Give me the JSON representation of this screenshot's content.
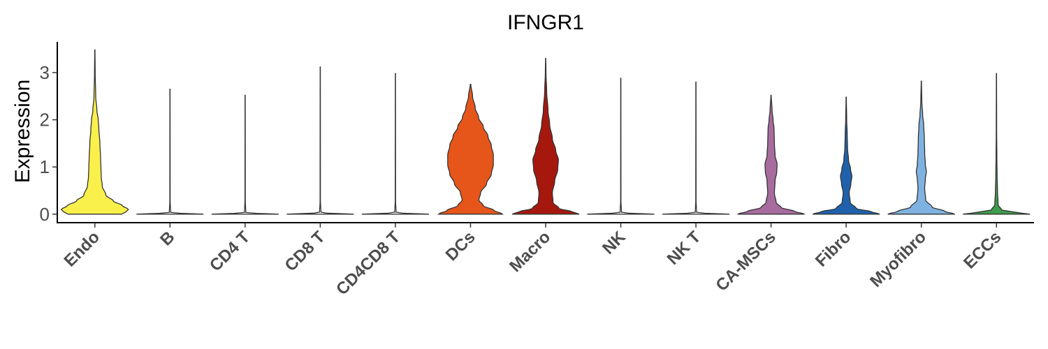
{
  "chart_data": {
    "type": "violin",
    "title": "IFNGR1",
    "xlabel": "",
    "ylabel": "Expression",
    "ylim": [
      -0.18,
      3.65
    ],
    "yticks": [
      0,
      1,
      2,
      3
    ],
    "grid": false,
    "legend": "none",
    "categories": [
      "Endo",
      "B",
      "CD4 T",
      "CD8 T",
      "CD4CD8 T",
      "DCs",
      "Macro",
      "NK",
      "NK T",
      "CA-MSCs",
      "Fibro",
      "Myofibro",
      "ECCs"
    ],
    "series": [
      {
        "category": "Endo",
        "color": "#FAF04B",
        "max": 3.48,
        "profile": [
          [
            0,
            0.8
          ],
          [
            0.05,
            0.93
          ],
          [
            0.1,
            1.0
          ],
          [
            0.18,
            0.82
          ],
          [
            0.28,
            0.55
          ],
          [
            0.4,
            0.33
          ],
          [
            0.6,
            0.22
          ],
          [
            0.8,
            0.19
          ],
          [
            1.0,
            0.18
          ],
          [
            1.2,
            0.17
          ],
          [
            1.5,
            0.15
          ],
          [
            1.8,
            0.12
          ],
          [
            2.0,
            0.1
          ],
          [
            2.2,
            0.06
          ],
          [
            2.5,
            0.025
          ],
          [
            3.0,
            0.01
          ],
          [
            3.48,
            0.004
          ]
        ]
      },
      {
        "category": "B",
        "color": "#FFFFFF",
        "max": 2.65,
        "profile": [
          [
            0,
            1.0
          ],
          [
            0.01,
            0.5
          ],
          [
            0.03,
            0.02
          ],
          [
            0.3,
            0.005
          ],
          [
            2.65,
            0.003
          ]
        ]
      },
      {
        "category": "CD4 T",
        "color": "#FFFFFF",
        "max": 2.52,
        "profile": [
          [
            0,
            1.0
          ],
          [
            0.01,
            0.5
          ],
          [
            0.03,
            0.02
          ],
          [
            0.3,
            0.005
          ],
          [
            2.52,
            0.003
          ]
        ]
      },
      {
        "category": "CD8 T",
        "color": "#FFFFFF",
        "max": 3.12,
        "profile": [
          [
            0,
            1.0
          ],
          [
            0.01,
            0.5
          ],
          [
            0.03,
            0.02
          ],
          [
            0.3,
            0.005
          ],
          [
            3.12,
            0.003
          ]
        ]
      },
      {
        "category": "CD4CD8 T",
        "color": "#FFFFFF",
        "max": 2.98,
        "profile": [
          [
            0,
            1.0
          ],
          [
            0.01,
            0.5
          ],
          [
            0.03,
            0.02
          ],
          [
            0.3,
            0.005
          ],
          [
            2.98,
            0.003
          ]
        ]
      },
      {
        "category": "DCs",
        "color": "#E6561B",
        "max": 2.75,
        "profile": [
          [
            0,
            0.95
          ],
          [
            0.08,
            0.7
          ],
          [
            0.18,
            0.38
          ],
          [
            0.3,
            0.25
          ],
          [
            0.45,
            0.3
          ],
          [
            0.65,
            0.48
          ],
          [
            0.85,
            0.62
          ],
          [
            1.05,
            0.68
          ],
          [
            1.25,
            0.68
          ],
          [
            1.45,
            0.62
          ],
          [
            1.65,
            0.52
          ],
          [
            1.85,
            0.38
          ],
          [
            2.05,
            0.24
          ],
          [
            2.25,
            0.14
          ],
          [
            2.5,
            0.06
          ],
          [
            2.75,
            0.01
          ]
        ]
      },
      {
        "category": "Macro",
        "color": "#A6180E",
        "max": 3.3,
        "profile": [
          [
            0,
            1.0
          ],
          [
            0.05,
            0.8
          ],
          [
            0.12,
            0.4
          ],
          [
            0.25,
            0.22
          ],
          [
            0.45,
            0.2
          ],
          [
            0.7,
            0.27
          ],
          [
            0.95,
            0.36
          ],
          [
            1.15,
            0.38
          ],
          [
            1.35,
            0.3
          ],
          [
            1.6,
            0.2
          ],
          [
            1.9,
            0.12
          ],
          [
            2.2,
            0.07
          ],
          [
            2.6,
            0.03
          ],
          [
            3.0,
            0.01
          ],
          [
            3.3,
            0.004
          ]
        ]
      },
      {
        "category": "NK",
        "color": "#FFFFFF",
        "max": 2.88,
        "profile": [
          [
            0,
            1.0
          ],
          [
            0.01,
            0.5
          ],
          [
            0.03,
            0.02
          ],
          [
            0.3,
            0.005
          ],
          [
            2.88,
            0.003
          ]
        ]
      },
      {
        "category": "NK T",
        "color": "#FFFFFF",
        "max": 2.8,
        "profile": [
          [
            0,
            1.0
          ],
          [
            0.01,
            0.5
          ],
          [
            0.03,
            0.02
          ],
          [
            0.3,
            0.005
          ],
          [
            2.8,
            0.003
          ]
        ]
      },
      {
        "category": "CA-MSCs",
        "color": "#A76B9E",
        "max": 2.52,
        "profile": [
          [
            0,
            1.0
          ],
          [
            0.06,
            0.7
          ],
          [
            0.14,
            0.3
          ],
          [
            0.25,
            0.15
          ],
          [
            0.45,
            0.1
          ],
          [
            0.7,
            0.12
          ],
          [
            0.9,
            0.17
          ],
          [
            1.05,
            0.18
          ],
          [
            1.25,
            0.12
          ],
          [
            1.5,
            0.1
          ],
          [
            1.8,
            0.09
          ],
          [
            2.0,
            0.06
          ],
          [
            2.2,
            0.03
          ],
          [
            2.52,
            0.005
          ]
        ]
      },
      {
        "category": "Fibro",
        "color": "#1F61AC",
        "max": 2.48,
        "profile": [
          [
            0,
            1.0
          ],
          [
            0.05,
            0.75
          ],
          [
            0.12,
            0.3
          ],
          [
            0.25,
            0.12
          ],
          [
            0.45,
            0.09
          ],
          [
            0.65,
            0.14
          ],
          [
            0.8,
            0.17
          ],
          [
            0.95,
            0.13
          ],
          [
            1.15,
            0.07
          ],
          [
            1.4,
            0.04
          ],
          [
            1.7,
            0.03
          ],
          [
            2.0,
            0.015
          ],
          [
            2.48,
            0.004
          ]
        ]
      },
      {
        "category": "Myofibro",
        "color": "#7FB2E0",
        "max": 2.82,
        "profile": [
          [
            0,
            1.0
          ],
          [
            0.06,
            0.7
          ],
          [
            0.15,
            0.32
          ],
          [
            0.3,
            0.13
          ],
          [
            0.55,
            0.1
          ],
          [
            0.75,
            0.12
          ],
          [
            0.9,
            0.15
          ],
          [
            1.05,
            0.12
          ],
          [
            1.3,
            0.1
          ],
          [
            1.6,
            0.09
          ],
          [
            1.9,
            0.07
          ],
          [
            2.1,
            0.04
          ],
          [
            2.4,
            0.015
          ],
          [
            2.82,
            0.004
          ]
        ]
      },
      {
        "category": "ECCs",
        "color": "#3E9B4A",
        "max": 2.98,
        "profile": [
          [
            0,
            1.0
          ],
          [
            0.04,
            0.55
          ],
          [
            0.09,
            0.15
          ],
          [
            0.2,
            0.05
          ],
          [
            0.5,
            0.03
          ],
          [
            0.8,
            0.02
          ],
          [
            1.2,
            0.012
          ],
          [
            1.8,
            0.006
          ],
          [
            2.98,
            0.003
          ]
        ]
      }
    ]
  }
}
